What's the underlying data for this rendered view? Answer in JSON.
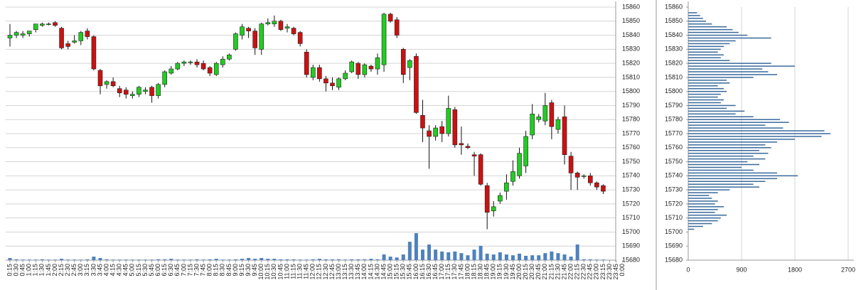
{
  "chart_data": [
    {
      "type": "candlestick",
      "categories": [
        "0:15",
        "0:30",
        "0:45",
        "1:00",
        "1:15",
        "1:30",
        "1:45",
        "2:00",
        "2:15",
        "2:30",
        "2:45",
        "3:00",
        "3:15",
        "3:30",
        "3:45",
        "4:00",
        "4:15",
        "4:30",
        "4:45",
        "5:00",
        "5:15",
        "5:30",
        "5:45",
        "6:00",
        "6:15",
        "6:30",
        "6:45",
        "7:00",
        "7:15",
        "7:30",
        "7:45",
        "8:00",
        "8:15",
        "8:30",
        "8:45",
        "9:00",
        "9:15",
        "9:30",
        "9:45",
        "10:00",
        "10:15",
        "10:30",
        "10:45",
        "11:00",
        "11:15",
        "11:30",
        "11:45",
        "12:00",
        "12:15",
        "12:30",
        "12:45",
        "13:00",
        "13:15",
        "13:30",
        "13:45",
        "14:00",
        "14:15",
        "14:30",
        "14:45",
        "15:00",
        "15:15",
        "15:30",
        "15:45",
        "16:00",
        "16:15",
        "16:30",
        "16:45",
        "17:00",
        "17:15",
        "17:30",
        "17:45",
        "18:00",
        "18:15",
        "18:30",
        "18:45",
        "19:00",
        "19:15",
        "19:30",
        "19:45",
        "20:00",
        "20:15",
        "20:30",
        "20:45",
        "21:00",
        "21:15",
        "21:30",
        "21:45",
        "22:00",
        "22:15",
        "22:30",
        "22:45",
        "23:00",
        "23:15",
        "23:30",
        "23:45",
        "0:00"
      ],
      "open": [
        15838,
        15840,
        15840,
        15841,
        15844,
        15847,
        15848,
        15849,
        15845,
        15834,
        15835,
        15836,
        15843,
        15839,
        15815,
        15805,
        15807,
        15802,
        15801,
        15797,
        15798,
        15800,
        15803,
        15797,
        15805,
        15813,
        15816,
        15820,
        15821,
        15821,
        15820,
        15817,
        15812,
        15819,
        15823,
        15830,
        15840,
        15845,
        15843,
        15830,
        15848,
        15848,
        15850,
        15845,
        15845,
        15842,
        15828,
        15810,
        15817,
        15809,
        15806,
        15803,
        15809,
        15814,
        15820,
        15812,
        15818,
        15816,
        15819,
        15855,
        15851,
        15830,
        15817,
        15825,
        15783,
        15772,
        15768,
        15775,
        15770,
        15787,
        15763,
        15761,
        15755,
        15755,
        15733,
        15715,
        15722,
        15729,
        15736,
        15740,
        15747,
        15769,
        15780,
        15779,
        15792,
        15773,
        15782,
        15754,
        15742,
        15740,
        15740,
        15735,
        15733,
        null,
        null,
        null
      ],
      "high": [
        15848,
        15843,
        15843,
        15843,
        15848,
        15849,
        15849,
        15850,
        15846,
        15836,
        15840,
        15843,
        15845,
        15840,
        15816,
        15808,
        15810,
        15804,
        15803,
        15800,
        15804,
        15803,
        15804,
        15806,
        15815,
        15818,
        15821,
        15822,
        15822,
        15823,
        15822,
        15818,
        15821,
        15825,
        15827,
        15842,
        15848,
        15846,
        15845,
        15849,
        15852,
        15854,
        15851,
        15848,
        15846,
        15843,
        15830,
        15819,
        15819,
        15811,
        15810,
        15810,
        15815,
        15822,
        15821,
        15820,
        15819,
        15827,
        15856,
        15856,
        15853,
        15831,
        15823,
        15827,
        15794,
        15776,
        15776,
        15779,
        15797,
        15789,
        15775,
        15763,
        15757,
        15756,
        15735,
        15722,
        15728,
        15741,
        15751,
        15760,
        15772,
        15791,
        15784,
        15799,
        15794,
        15782,
        15790,
        15757,
        15743,
        15741,
        15742,
        15736,
        15734,
        null,
        null,
        null
      ],
      "low": [
        15832,
        15838,
        15838,
        15839,
        15842,
        15846,
        15847,
        15846,
        15830,
        15830,
        15834,
        15833,
        15837,
        15815,
        15798,
        15802,
        15803,
        15796,
        15795,
        15795,
        15796,
        15798,
        15792,
        15795,
        15803,
        15812,
        15815,
        15818,
        15819,
        15817,
        15815,
        15811,
        15811,
        15817,
        15822,
        15829,
        15837,
        15838,
        15826,
        15826,
        15847,
        15846,
        15843,
        15842,
        15840,
        15832,
        15810,
        15808,
        15807,
        15800,
        15801,
        15801,
        15808,
        15813,
        15809,
        15810,
        15814,
        15812,
        15814,
        15849,
        15838,
        15806,
        15808,
        15784,
        15764,
        15745,
        15765,
        15764,
        15768,
        15760,
        15755,
        15759,
        15740,
        15733,
        15702,
        15711,
        15720,
        15723,
        15733,
        15738,
        15742,
        15766,
        15778,
        15776,
        15766,
        15770,
        15748,
        15730,
        15730,
        15738,
        15733,
        15730,
        15727,
        null,
        null,
        null
      ],
      "close": [
        15840,
        15842,
        15841,
        15843,
        15848,
        15848,
        15848,
        15847,
        15831,
        15832,
        15836,
        15842,
        15839,
        15816,
        15804,
        15807,
        15804,
        15799,
        15798,
        15798,
        15803,
        15801,
        15797,
        15805,
        15814,
        15816,
        15820,
        15821,
        15821,
        15819,
        15816,
        15813,
        15820,
        15823,
        15826,
        15841,
        15846,
        15843,
        15831,
        15848,
        15849,
        15850,
        15844,
        15846,
        15841,
        15834,
        15812,
        15817,
        15809,
        15806,
        15804,
        15809,
        15813,
        15821,
        15812,
        15819,
        15816,
        15824,
        15855,
        15850,
        15840,
        15812,
        15822,
        15785,
        15774,
        15768,
        15774,
        15770,
        15788,
        15762,
        15762,
        15760,
        15754,
        15734,
        15714,
        15718,
        15726,
        15735,
        15743,
        15756,
        15768,
        15784,
        15782,
        15790,
        15775,
        15780,
        15755,
        15742,
        15739,
        15740,
        15735,
        15732,
        15729,
        null,
        null,
        null
      ],
      "volume": [
        8,
        3,
        2,
        2,
        2,
        3,
        2,
        2,
        5,
        2,
        2,
        2,
        3,
        13,
        8,
        3,
        2,
        2,
        2,
        2,
        2,
        2,
        2,
        3,
        3,
        5,
        2,
        2,
        2,
        3,
        2,
        3,
        5,
        2,
        2,
        3,
        5,
        8,
        5,
        8,
        5,
        5,
        3,
        3,
        3,
        2,
        2,
        3,
        5,
        3,
        3,
        3,
        2,
        3,
        3,
        3,
        5,
        3,
        21,
        13,
        10,
        21,
        68,
        100,
        39,
        58,
        39,
        32,
        29,
        32,
        26,
        18,
        39,
        53,
        24,
        21,
        29,
        21,
        18,
        24,
        16,
        18,
        18,
        26,
        32,
        26,
        21,
        13,
        58,
        3,
        3,
        2,
        2,
        null,
        null,
        null
      ],
      "up_color": "#22cc22",
      "down_color": "#cc1111",
      "volume_color": "#4f81bd",
      "ylim": [
        15680,
        15860
      ],
      "yticks": [
        15680,
        15690,
        15700,
        15710,
        15720,
        15730,
        15740,
        15750,
        15760,
        15770,
        15780,
        15790,
        15800,
        15810,
        15820,
        15830,
        15840,
        15850,
        15860
      ],
      "grid": true
    },
    {
      "type": "volume-profile",
      "levels": [
        15702,
        15704,
        15706,
        15708,
        15710,
        15712,
        15714,
        15716,
        15718,
        15720,
        15722,
        15724,
        15726,
        15728,
        15730,
        15732,
        15734,
        15736,
        15738,
        15740,
        15742,
        15744,
        15746,
        15748,
        15750,
        15752,
        15754,
        15756,
        15758,
        15760,
        15762,
        15764,
        15766,
        15768,
        15770,
        15772,
        15774,
        15776,
        15778,
        15780,
        15782,
        15784,
        15786,
        15788,
        15790,
        15792,
        15794,
        15796,
        15798,
        15800,
        15802,
        15804,
        15806,
        15808,
        15810,
        15812,
        15814,
        15816,
        15818,
        15820,
        15822,
        15824,
        15826,
        15828,
        15830,
        15832,
        15834,
        15836,
        15838,
        15840,
        15842,
        15844,
        15846,
        15848,
        15850,
        15852,
        15854,
        15856
      ],
      "values": [
        100,
        250,
        400,
        500,
        550,
        650,
        450,
        500,
        600,
        450,
        500,
        400,
        350,
        500,
        700,
        1200,
        1100,
        1300,
        1500,
        1850,
        1500,
        1100,
        900,
        1200,
        1000,
        1300,
        1100,
        1350,
        1200,
        1400,
        1300,
        1500,
        1800,
        2250,
        2400,
        2300,
        1600,
        1300,
        1700,
        1550,
        1100,
        800,
        950,
        650,
        800,
        550,
        600,
        500,
        550,
        650,
        600,
        500,
        700,
        650,
        1100,
        1500,
        1350,
        1250,
        1800,
        1400,
        700,
        550,
        600,
        500,
        550,
        600,
        700,
        800,
        1400,
        1000,
        850,
        750,
        650,
        400,
        300,
        250,
        200,
        150
      ],
      "color": "#3a6a9c",
      "xlim": [
        0,
        2700
      ],
      "xticks": [
        0,
        900,
        1800,
        2700
      ],
      "ylim": [
        15680,
        15860
      ],
      "yticks": [
        15680,
        15690,
        15700,
        15710,
        15720,
        15730,
        15740,
        15750,
        15760,
        15770,
        15780,
        15790,
        15800,
        15810,
        15820,
        15830,
        15840,
        15850,
        15860
      ],
      "grid": true
    }
  ]
}
